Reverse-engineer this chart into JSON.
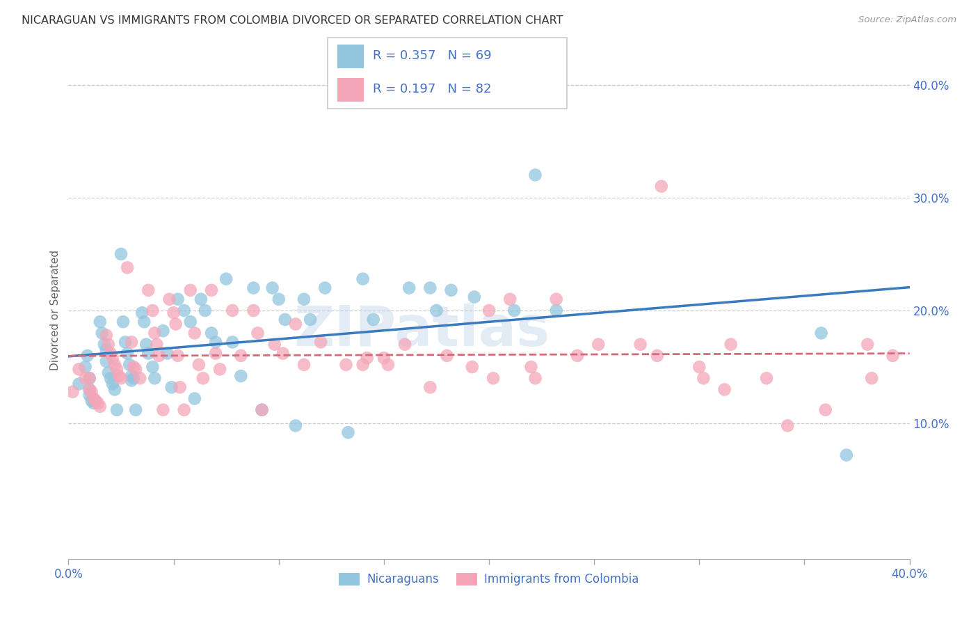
{
  "title": "NICARAGUAN VS IMMIGRANTS FROM COLOMBIA DIVORCED OR SEPARATED CORRELATION CHART",
  "source": "Source: ZipAtlas.com",
  "ylabel": "Divorced or Separated",
  "xlim": [
    0.0,
    0.4
  ],
  "ylim": [
    -0.02,
    0.42
  ],
  "yticks_right": [
    0.1,
    0.2,
    0.3,
    0.4
  ],
  "legend_r1": "0.357",
  "legend_n1": "69",
  "legend_r2": "0.197",
  "legend_n2": "82",
  "blue_color": "#92c5de",
  "pink_color": "#f4a6b8",
  "blue_line_color": "#3a7abf",
  "pink_line_color": "#d46b7a",
  "title_color": "#333333",
  "axis_label_color": "#4472c4",
  "legend_text_color": "#4472c4",
  "watermark": "ZIPatlas",
  "blue_scatter_x": [
    0.005,
    0.008,
    0.009,
    0.01,
    0.01,
    0.01,
    0.011,
    0.012,
    0.015,
    0.016,
    0.017,
    0.018,
    0.018,
    0.019,
    0.02,
    0.021,
    0.022,
    0.023,
    0.025,
    0.026,
    0.027,
    0.028,
    0.029,
    0.03,
    0.03,
    0.031,
    0.032,
    0.035,
    0.036,
    0.037,
    0.038,
    0.04,
    0.041,
    0.045,
    0.047,
    0.049,
    0.052,
    0.055,
    0.058,
    0.06,
    0.063,
    0.065,
    0.068,
    0.07,
    0.075,
    0.078,
    0.082,
    0.088,
    0.092,
    0.097,
    0.1,
    0.103,
    0.108,
    0.112,
    0.115,
    0.122,
    0.133,
    0.14,
    0.145,
    0.162,
    0.172,
    0.175,
    0.182,
    0.193,
    0.212,
    0.222,
    0.232,
    0.358,
    0.37
  ],
  "blue_scatter_y": [
    0.135,
    0.15,
    0.16,
    0.14,
    0.13,
    0.125,
    0.12,
    0.118,
    0.19,
    0.18,
    0.17,
    0.165,
    0.155,
    0.145,
    0.14,
    0.135,
    0.13,
    0.112,
    0.25,
    0.19,
    0.172,
    0.162,
    0.152,
    0.142,
    0.138,
    0.14,
    0.112,
    0.198,
    0.19,
    0.17,
    0.162,
    0.15,
    0.14,
    0.182,
    0.162,
    0.132,
    0.21,
    0.2,
    0.19,
    0.122,
    0.21,
    0.2,
    0.18,
    0.172,
    0.228,
    0.172,
    0.142,
    0.22,
    0.112,
    0.22,
    0.21,
    0.192,
    0.098,
    0.21,
    0.192,
    0.22,
    0.092,
    0.228,
    0.192,
    0.22,
    0.22,
    0.2,
    0.218,
    0.212,
    0.2,
    0.32,
    0.2,
    0.18,
    0.072
  ],
  "pink_scatter_x": [
    0.002,
    0.005,
    0.008,
    0.01,
    0.01,
    0.011,
    0.012,
    0.013,
    0.014,
    0.015,
    0.018,
    0.019,
    0.02,
    0.021,
    0.022,
    0.023,
    0.024,
    0.025,
    0.028,
    0.03,
    0.031,
    0.032,
    0.034,
    0.038,
    0.04,
    0.041,
    0.042,
    0.043,
    0.045,
    0.048,
    0.05,
    0.051,
    0.052,
    0.053,
    0.055,
    0.058,
    0.06,
    0.062,
    0.064,
    0.068,
    0.07,
    0.072,
    0.078,
    0.082,
    0.088,
    0.09,
    0.092,
    0.098,
    0.102,
    0.108,
    0.112,
    0.12,
    0.132,
    0.14,
    0.142,
    0.15,
    0.152,
    0.16,
    0.172,
    0.18,
    0.192,
    0.2,
    0.202,
    0.21,
    0.22,
    0.222,
    0.232,
    0.242,
    0.252,
    0.272,
    0.28,
    0.282,
    0.3,
    0.302,
    0.312,
    0.315,
    0.332,
    0.342,
    0.36,
    0.38,
    0.382,
    0.392
  ],
  "pink_scatter_y": [
    0.128,
    0.148,
    0.14,
    0.14,
    0.13,
    0.128,
    0.122,
    0.12,
    0.118,
    0.115,
    0.178,
    0.17,
    0.162,
    0.158,
    0.152,
    0.148,
    0.142,
    0.14,
    0.238,
    0.172,
    0.15,
    0.148,
    0.14,
    0.218,
    0.2,
    0.18,
    0.17,
    0.16,
    0.112,
    0.21,
    0.198,
    0.188,
    0.16,
    0.132,
    0.112,
    0.218,
    0.18,
    0.152,
    0.14,
    0.218,
    0.162,
    0.148,
    0.2,
    0.16,
    0.2,
    0.18,
    0.112,
    0.17,
    0.162,
    0.188,
    0.152,
    0.172,
    0.152,
    0.152,
    0.158,
    0.158,
    0.152,
    0.17,
    0.132,
    0.16,
    0.15,
    0.2,
    0.14,
    0.21,
    0.15,
    0.14,
    0.21,
    0.16,
    0.17,
    0.17,
    0.16,
    0.31,
    0.15,
    0.14,
    0.13,
    0.17,
    0.14,
    0.098,
    0.112,
    0.17,
    0.14,
    0.16
  ]
}
